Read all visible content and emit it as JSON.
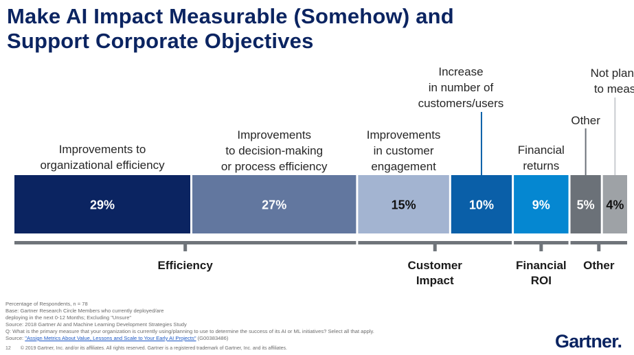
{
  "title": {
    "line1": "Make AI Impact Measurable (Somehow) and",
    "line2": "Support Corporate Objectives"
  },
  "chart_data": {
    "type": "bar",
    "orientation": "horizontal-stacked",
    "unit": "Percentage of Respondents",
    "segments": [
      {
        "label": [
          "Improvements to",
          "organizational efficiency"
        ],
        "value": 29,
        "value_label": "29%",
        "color": "#0b2461",
        "group": "Efficiency"
      },
      {
        "label": [
          "Improvements",
          "to decision-making",
          "or process efficiency"
        ],
        "value": 27,
        "value_label": "27%",
        "color": "#62779f",
        "group": "Efficiency"
      },
      {
        "label": [
          "Improvements",
          "in customer",
          "engagement"
        ],
        "value": 15,
        "value_label": "15%",
        "color": "#a3b4d1",
        "group": "Customer Impact"
      },
      {
        "label": [
          "Increase",
          "in number of",
          "customers/users"
        ],
        "value": 10,
        "value_label": "10%",
        "color": "#0a5fa8",
        "group": "Customer Impact"
      },
      {
        "label": [
          "Financial",
          "returns"
        ],
        "value": 9,
        "value_label": "9%",
        "color": "#0587d1",
        "group": "Financial ROI"
      },
      {
        "label": [
          "Other"
        ],
        "value": 5,
        "value_label": "5%",
        "color": "#6b7178",
        "group": "Other"
      },
      {
        "label": [
          "Not planning",
          "to measure"
        ],
        "value": 4,
        "value_label": "4%",
        "color": "#9ea2a6",
        "group": "Other"
      }
    ],
    "groups": [
      {
        "name": [
          "Efficiency"
        ]
      },
      {
        "name": [
          "Customer",
          "Impact"
        ]
      },
      {
        "name": [
          "Financial",
          "ROI"
        ]
      },
      {
        "name": [
          "Other"
        ]
      }
    ]
  },
  "footnotes": {
    "line1": "Percentage of Respondents, n = 78",
    "line2": "Base: Gartner Research Circle Members who currently deployed/are",
    "line3": "deploying in the next 0-12 Months; Excluding \"Unsure\"",
    "line4": "Source: 2018 Gartner AI and Machine Learning Development Strategies Study",
    "line5": "Q: What is the primary measure that your organization is currently using/planning to use to determine the success of its AI or ML initiatives? Select all that apply.",
    "source_prefix": "Source: ",
    "source_link": "\"Assign Metrics About Value, Lessons and Scale to Your Early AI Projects\"",
    "source_id": " (G00383486)"
  },
  "copyright": {
    "page": "12",
    "text": "© 2019 Gartner, Inc. and/or its affiliates. All rights reserved. Gartner is a registered trademark of Gartner, Inc. and its affiliates."
  },
  "logo": "Gartner."
}
